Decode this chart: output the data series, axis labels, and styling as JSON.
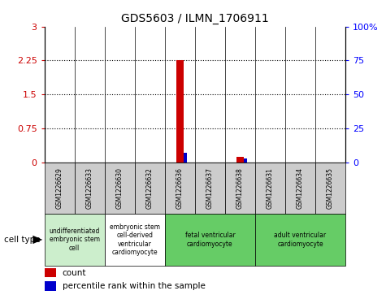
{
  "title": "GDS5603 / ILMN_1706911",
  "samples": [
    "GSM1226629",
    "GSM1226633",
    "GSM1226630",
    "GSM1226632",
    "GSM1226636",
    "GSM1226637",
    "GSM1226638",
    "GSM1226631",
    "GSM1226634",
    "GSM1226635"
  ],
  "red_bars": [
    0,
    0,
    0,
    0,
    2.26,
    0,
    0.12,
    0,
    0,
    0
  ],
  "blue_bars_pct": [
    0,
    0,
    0,
    0,
    7,
    0,
    3,
    0,
    0,
    0
  ],
  "ylim_left": [
    0,
    3
  ],
  "ylim_right": [
    0,
    100
  ],
  "yticks_left": [
    0,
    0.75,
    1.5,
    2.25,
    3
  ],
  "yticks_right": [
    0,
    25,
    50,
    75,
    100
  ],
  "ytick_labels_left": [
    "0",
    "0.75",
    "1.5",
    "2.25",
    "3"
  ],
  "ytick_labels_right": [
    "0",
    "25",
    "50",
    "75",
    "100%"
  ],
  "cell_type_groups": [
    {
      "label": "undifferentiated\nembryonic stem\ncell",
      "span": [
        0,
        2
      ],
      "color": "#cceecc"
    },
    {
      "label": "embryonic stem\ncell-derived\nventricular\ncardiomyocyte",
      "span": [
        2,
        4
      ],
      "color": "#ffffff"
    },
    {
      "label": "fetal ventricular\ncardiomyocyte",
      "span": [
        4,
        7
      ],
      "color": "#66cc66"
    },
    {
      "label": "adult ventricular\ncardiomyocyte",
      "span": [
        7,
        10
      ],
      "color": "#66cc66"
    }
  ],
  "bar_bg_color": "#cccccc",
  "plot_bg_color": "#ffffff",
  "red_color": "#cc0000",
  "blue_color": "#0000cc",
  "legend_count_label": "count",
  "legend_percentile_label": "percentile rank within the sample",
  "cell_type_label": "cell type"
}
